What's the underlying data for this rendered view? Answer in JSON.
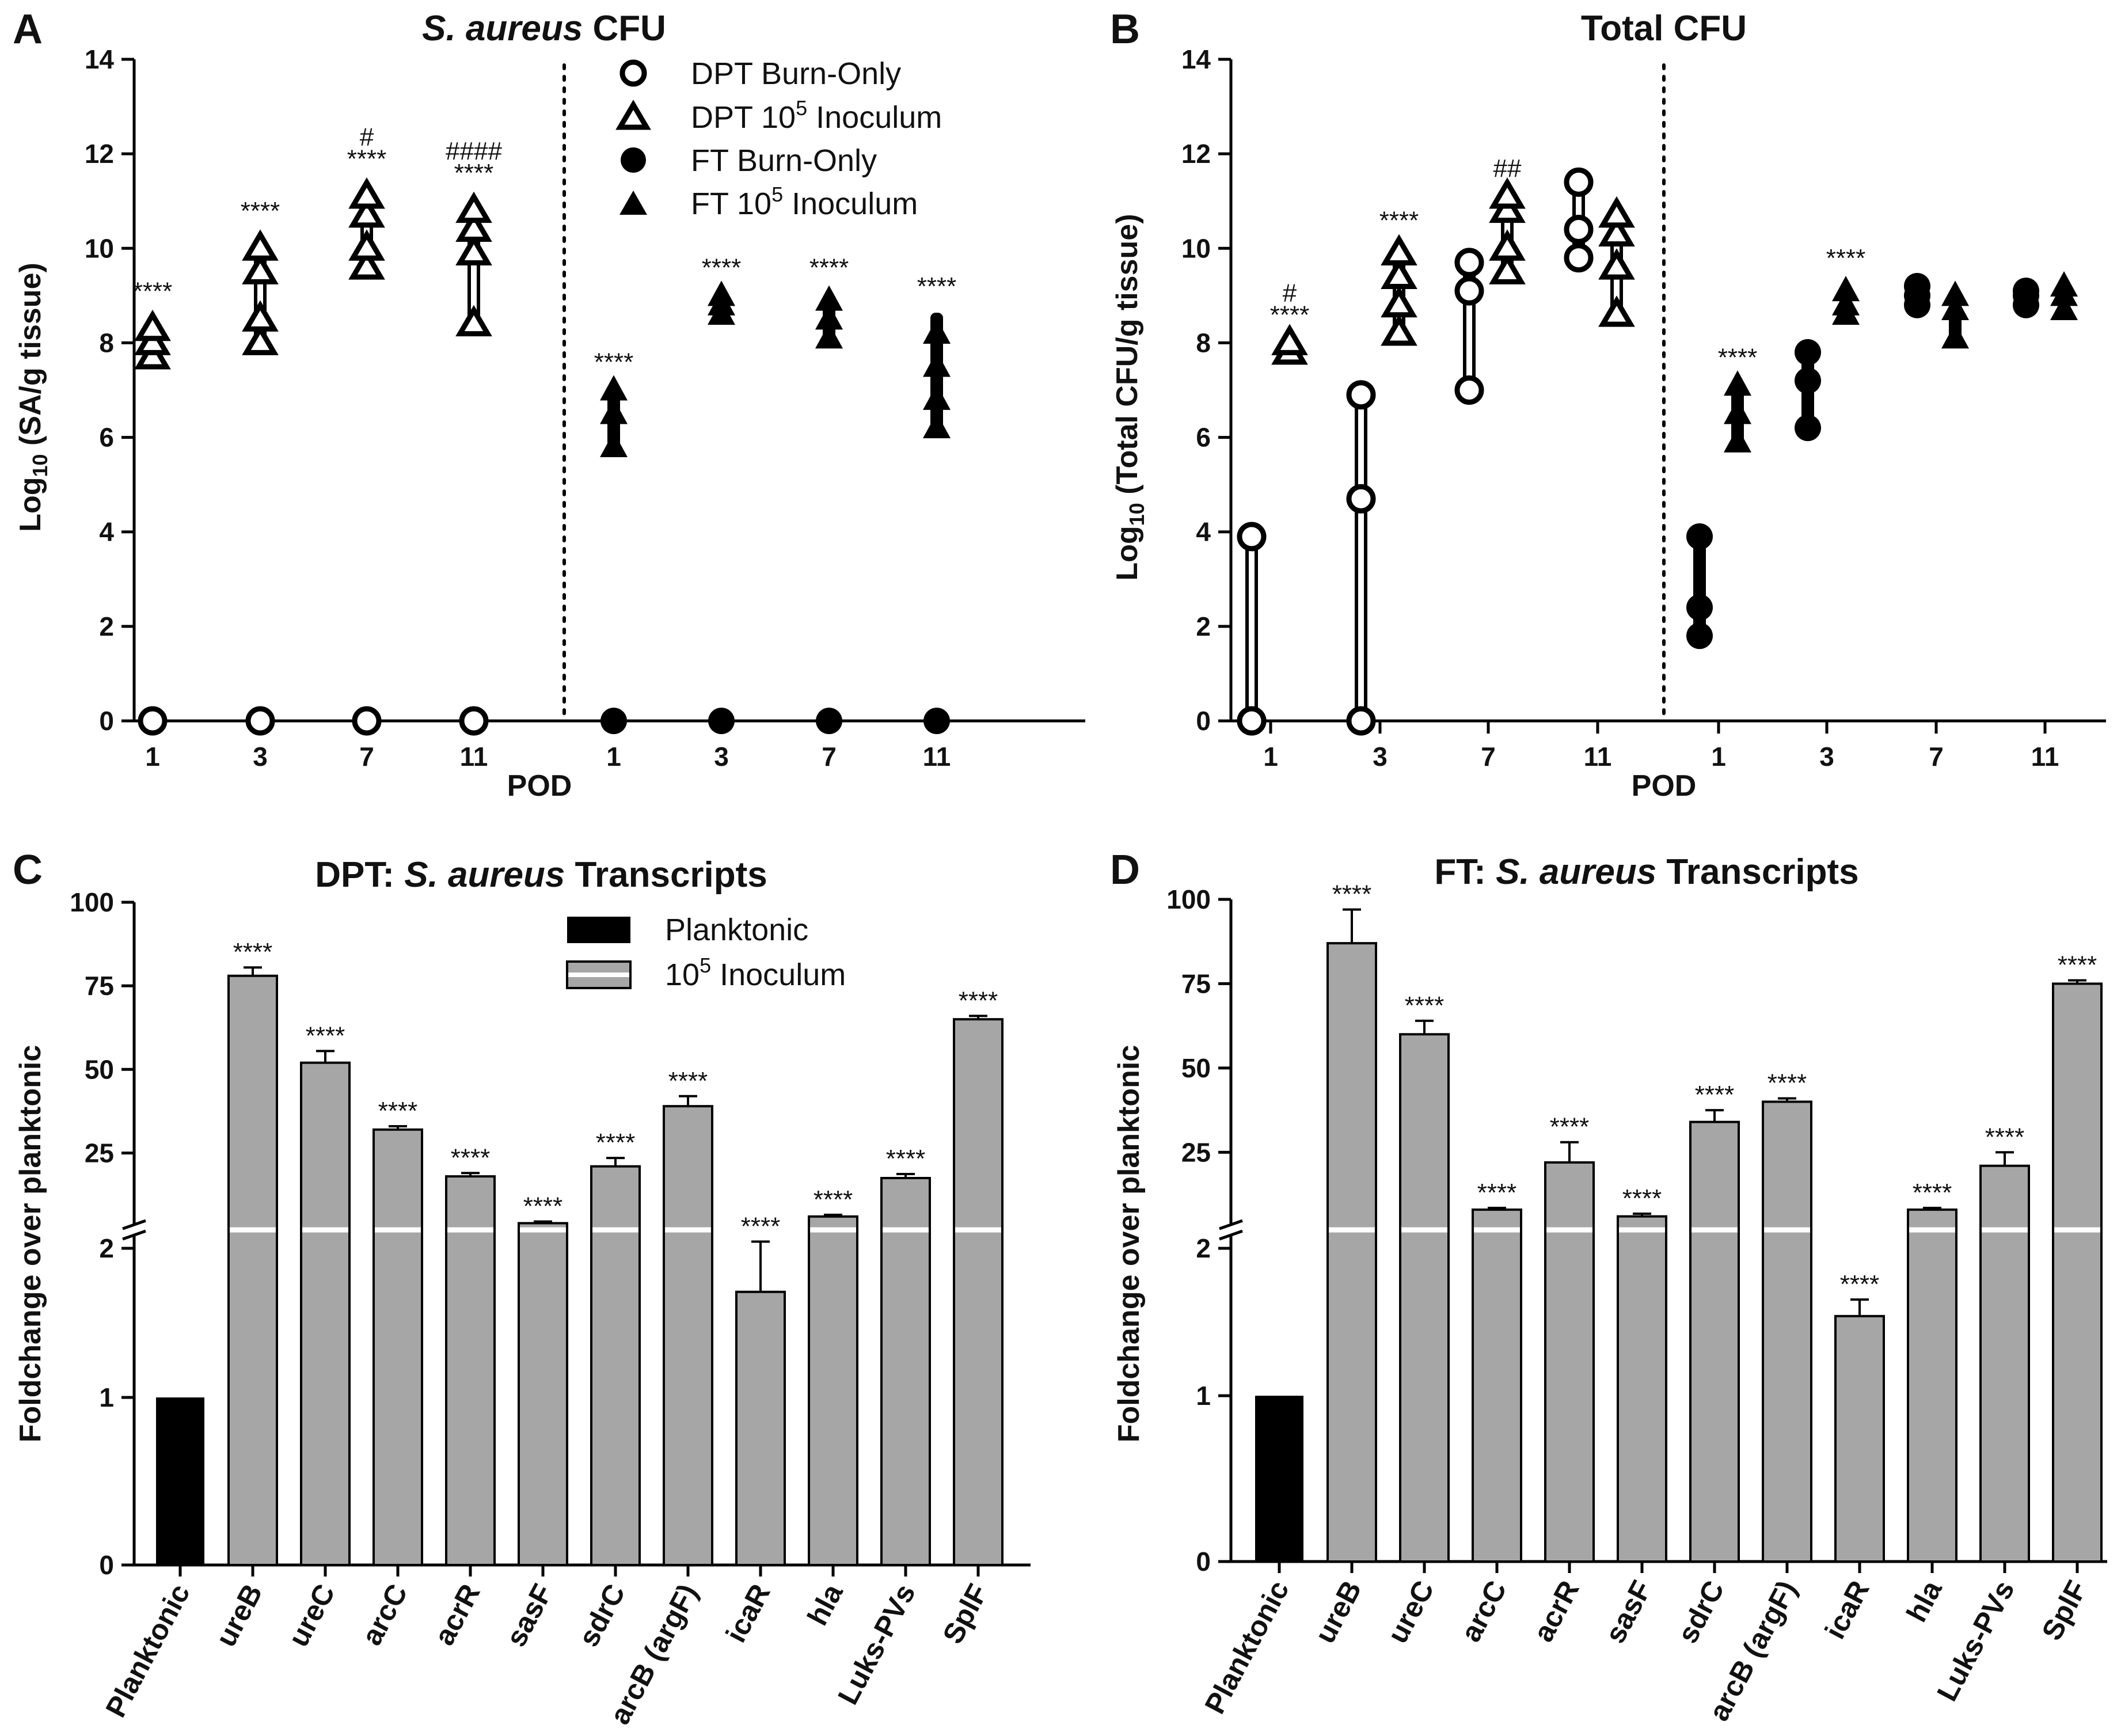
{
  "panels": {
    "A": "A",
    "B": "B",
    "C": "C",
    "D": "D"
  },
  "legend_top": {
    "dpt_burn": "DPT Burn-Only",
    "dpt_inoc": "DPT 10",
    "ft_burn": "FT Burn-Only",
    "ft_inoc": "FT 10",
    "sup": "5",
    "inoc_suffix": " Inoculum"
  },
  "legend_bottom": {
    "planktonic": "Planktonic",
    "inoc": "10",
    "sup": "5",
    "inoc_suffix": " Inoculum"
  },
  "chart_data": [
    {
      "type": "scatter",
      "panel": "A",
      "title_italic": "S. aureus",
      "title_rest": " CFU",
      "ylabel": "Log10 (SA/g tissue)",
      "ylabel_pre": "Log",
      "ylabel_sub": "10",
      "ylabel_post": " (SA/g tissue)",
      "xlabel": "POD",
      "ylim": [
        0,
        14
      ],
      "yticks": [
        "0",
        "2",
        "4",
        "6",
        "8",
        "10",
        "12",
        "14"
      ],
      "groups": [
        {
          "pod": "1",
          "section": "DPT",
          "series": "DPT Burn-Only",
          "min": 0,
          "max": 0,
          "points": [
            0
          ],
          "ann": []
        },
        {
          "pod": "1",
          "section": "DPT",
          "series": "DPT 10^5 Inoculum",
          "min": 7.7,
          "max": 8.5,
          "points": [
            7.7,
            8.0,
            8.3
          ],
          "ann": [
            "****"
          ]
        },
        {
          "pod": "3",
          "section": "DPT",
          "series": "DPT Burn-Only",
          "min": 0,
          "max": 0,
          "points": [
            0
          ],
          "ann": []
        },
        {
          "pod": "3",
          "section": "DPT",
          "series": "DPT 10^5 Inoculum",
          "min": 8.0,
          "max": 10.2,
          "points": [
            8.0,
            8.5,
            9.5,
            10.0
          ],
          "ann": [
            "****"
          ]
        },
        {
          "pod": "7",
          "section": "DPT",
          "series": "DPT Burn-Only",
          "min": 0,
          "max": 0,
          "points": [
            0
          ],
          "ann": []
        },
        {
          "pod": "7",
          "section": "DPT",
          "series": "DPT 10^5 Inoculum",
          "min": 9.6,
          "max": 11.3,
          "points": [
            9.6,
            10.0,
            10.7,
            11.1
          ],
          "ann": [
            "****",
            "#"
          ]
        },
        {
          "pod": "11",
          "section": "DPT",
          "series": "DPT Burn-Only",
          "min": 0,
          "max": 0,
          "points": [
            0
          ],
          "ann": []
        },
        {
          "pod": "11",
          "section": "DPT",
          "series": "DPT 10^5 Inoculum",
          "min": 8.4,
          "max": 11.0,
          "points": [
            8.4,
            9.9,
            10.4,
            10.8
          ],
          "ann": [
            "****",
            "####"
          ]
        },
        {
          "pod": "1",
          "section": "FT",
          "series": "FT Burn-Only",
          "min": 0,
          "max": 0,
          "points": [
            0
          ],
          "ann": []
        },
        {
          "pod": "1",
          "section": "FT",
          "series": "FT 10^5 Inoculum",
          "min": 5.8,
          "max": 7.0,
          "points": [
            5.8,
            6.5,
            7.0
          ],
          "ann": [
            "****"
          ]
        },
        {
          "pod": "3",
          "section": "FT",
          "series": "FT Burn-Only",
          "min": 0,
          "max": 0,
          "points": [
            0
          ],
          "ann": []
        },
        {
          "pod": "3",
          "section": "FT",
          "series": "FT 10^5 Inoculum",
          "min": 8.6,
          "max": 9.0,
          "points": [
            8.6,
            8.8,
            9.0
          ],
          "ann": [
            "****"
          ]
        },
        {
          "pod": "7",
          "section": "FT",
          "series": "FT Burn-Only",
          "min": 0,
          "max": 0,
          "points": [
            0
          ],
          "ann": []
        },
        {
          "pod": "7",
          "section": "FT",
          "series": "FT 10^5 Inoculum",
          "min": 8.1,
          "max": 9.0,
          "points": [
            8.1,
            8.5,
            8.9
          ],
          "ann": [
            "****"
          ]
        },
        {
          "pod": "11",
          "section": "FT",
          "series": "FT Burn-Only",
          "min": 0,
          "max": 0,
          "points": [
            0
          ],
          "ann": []
        },
        {
          "pod": "11",
          "section": "FT",
          "series": "FT 10^5 Inoculum",
          "min": 6.2,
          "max": 8.6,
          "points": [
            6.2,
            6.8,
            7.5,
            8.2
          ],
          "ann": [
            "****"
          ]
        }
      ]
    },
    {
      "type": "scatter",
      "panel": "B",
      "title_italic": "",
      "title_rest": "Total CFU",
      "ylabel": "Log10 (Total CFU/g tissue)",
      "ylabel_pre": "Log",
      "ylabel_sub": "10",
      "ylabel_post": " (Total CFU/g tissue)",
      "xlabel": "POD",
      "ylim": [
        0,
        14
      ],
      "yticks": [
        "0",
        "2",
        "4",
        "6",
        "8",
        "10",
        "12",
        "14"
      ],
      "groups": [
        {
          "pod": "1",
          "section": "DPT",
          "series": "DPT Burn-Only",
          "min": 0,
          "max": 3.9,
          "points": [
            0,
            0,
            3.9
          ],
          "ann": []
        },
        {
          "pod": "1",
          "section": "DPT",
          "series": "DPT 10^5 Inoculum",
          "min": 7.8,
          "max": 8.0,
          "points": [
            7.8,
            8.0
          ],
          "ann": [
            "****",
            "#"
          ]
        },
        {
          "pod": "3",
          "section": "DPT",
          "series": "DPT Burn-Only",
          "min": 0,
          "max": 6.9,
          "points": [
            0,
            4.7,
            6.9
          ],
          "ann": []
        },
        {
          "pod": "3",
          "section": "DPT",
          "series": "DPT 10^5 Inoculum",
          "min": 8.2,
          "max": 10.0,
          "points": [
            8.2,
            8.8,
            9.4,
            9.9
          ],
          "ann": [
            "****"
          ]
        },
        {
          "pod": "7",
          "section": "DPT",
          "series": "DPT Burn-Only",
          "min": 7.0,
          "max": 9.7,
          "points": [
            7.0,
            9.1,
            9.7
          ],
          "ann": []
        },
        {
          "pod": "7",
          "section": "DPT",
          "series": "DPT 10^5 Inoculum",
          "min": 9.5,
          "max": 11.1,
          "points": [
            9.5,
            10.0,
            10.8,
            11.1
          ],
          "ann": [
            "##"
          ]
        },
        {
          "pod": "11",
          "section": "DPT",
          "series": "DPT Burn-Only",
          "min": 9.8,
          "max": 11.4,
          "points": [
            9.8,
            10.4,
            11.4
          ],
          "ann": []
        },
        {
          "pod": "11",
          "section": "DPT",
          "series": "DPT 10^5 Inoculum",
          "min": 8.6,
          "max": 10.8,
          "points": [
            8.6,
            9.6,
            10.3,
            10.7
          ],
          "ann": []
        },
        {
          "pod": "1",
          "section": "FT",
          "series": "FT Burn-Only",
          "min": 1.8,
          "max": 3.9,
          "points": [
            1.8,
            2.4,
            3.9
          ],
          "ann": []
        },
        {
          "pod": "1",
          "section": "FT",
          "series": "FT 10^5 Inoculum",
          "min": 5.9,
          "max": 7.1,
          "points": [
            5.9,
            6.5,
            7.1
          ],
          "ann": [
            "****"
          ]
        },
        {
          "pod": "3",
          "section": "FT",
          "series": "FT Burn-Only",
          "min": 6.2,
          "max": 7.8,
          "points": [
            6.2,
            7.2,
            7.8
          ],
          "ann": []
        },
        {
          "pod": "3",
          "section": "FT",
          "series": "FT 10^5 Inoculum",
          "min": 8.6,
          "max": 9.2,
          "points": [
            8.6,
            8.8,
            9.1
          ],
          "ann": [
            "****"
          ]
        },
        {
          "pod": "7",
          "section": "FT",
          "series": "FT Burn-Only",
          "min": 8.8,
          "max": 9.2,
          "points": [
            8.8,
            9.0,
            9.2
          ],
          "ann": []
        },
        {
          "pod": "7",
          "section": "FT",
          "series": "FT 10^5 Inoculum",
          "min": 8.1,
          "max": 9.0,
          "points": [
            8.1,
            8.7,
            9.0
          ],
          "ann": []
        },
        {
          "pod": "11",
          "section": "FT",
          "series": "FT Burn-Only",
          "min": 8.8,
          "max": 9.1,
          "points": [
            8.8,
            9.0,
            9.1
          ],
          "ann": []
        },
        {
          "pod": "11",
          "section": "FT",
          "series": "FT 10^5 Inoculum",
          "min": 8.7,
          "max": 9.2,
          "points": [
            8.7,
            9.0,
            9.2
          ],
          "ann": []
        }
      ]
    },
    {
      "type": "bar",
      "panel": "C",
      "title_prefix": "DPT: ",
      "title_italic": "S. aureus",
      "title_rest": " Transcripts",
      "ylabel": "Foldchange over planktonic",
      "upper_range": [
        2,
        100
      ],
      "upper_ticks": [
        "2",
        "25",
        "50",
        "75",
        "100"
      ],
      "lower_range": [
        0,
        2
      ],
      "lower_ticks": [
        "0",
        "1",
        "2"
      ],
      "categories": [
        "Planktonic",
        "ureB",
        "ureC",
        "arcC",
        "acrR",
        "sasF",
        "sdrC",
        "arcB (argF)",
        "icaR",
        "hla",
        "Luks-PVs",
        "SplF"
      ],
      "values": [
        1,
        78,
        52,
        32,
        18,
        4,
        21,
        39,
        1.63,
        6,
        17.5,
        65
      ],
      "errors": [
        0,
        2.5,
        3.5,
        1,
        1,
        0.5,
        2.5,
        3,
        0.3,
        0.5,
        1.2,
        1
      ],
      "annotations": [
        "",
        "****",
        "****",
        "****",
        "****",
        "****",
        "****",
        "****",
        "****",
        "****",
        "****",
        "****"
      ]
    },
    {
      "type": "bar",
      "panel": "D",
      "title_prefix": "FT: ",
      "title_italic": "S. aureus",
      "title_rest": " Transcripts",
      "ylabel": "Foldchange over planktonic",
      "upper_range": [
        2,
        100
      ],
      "upper_ticks": [
        "2",
        "25",
        "50",
        "75",
        "100"
      ],
      "lower_range": [
        0,
        2
      ],
      "lower_ticks": [
        "0",
        "1",
        "2"
      ],
      "categories": [
        "Planktonic",
        "ureB",
        "ureC",
        "arcC",
        "acrR",
        "sasF",
        "sdrC",
        "arcB (argF)",
        "icaR",
        "hla",
        "Luks-PVs",
        "SplF"
      ],
      "values": [
        1,
        87,
        60,
        8,
        22,
        6,
        34,
        40,
        1.48,
        8,
        21,
        75
      ],
      "errors": [
        0,
        10,
        4,
        0.5,
        6,
        0.8,
        3.5,
        1,
        0.1,
        0.5,
        4,
        1
      ],
      "annotations": [
        "",
        "****",
        "****",
        "****",
        "****",
        "****",
        "****",
        "****",
        "****",
        "****",
        "****",
        "****"
      ]
    }
  ]
}
